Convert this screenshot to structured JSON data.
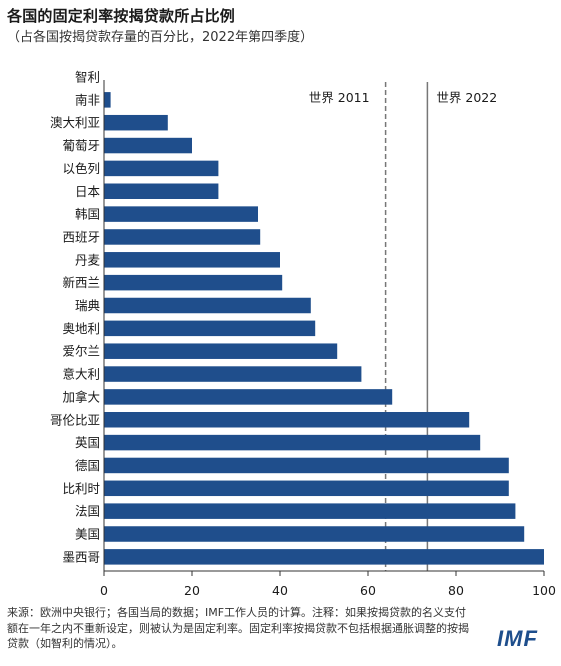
{
  "title": "各国的固定利率按揭贷款所占比例",
  "subtitle": "（占各国按揭贷款存量的百分比，2022年第四季度）",
  "footer": "来源：欧洲中央银行；各国当局的数据；IMF工作人员的计算。注释：如果按揭贷款的名义支付额在一年之内不重新设定，则被认为是固定利率。固定利率按揭贷款不包括根据通胀调整的按揭贷款（如智利的情况）。",
  "logo_text": "IMF",
  "colors": {
    "bar": "#1f4e8c",
    "refline": "#777777",
    "axis": "#333333"
  },
  "chart_data": {
    "type": "bar",
    "orientation": "horizontal",
    "categories": [
      "智利",
      "南非",
      "澳大利亚",
      "葡萄牙",
      "以色列",
      "日本",
      "韩国",
      "西班牙",
      "丹麦",
      "新西兰",
      "瑞典",
      "奥地利",
      "爱尔兰",
      "意大利",
      "加拿大",
      "哥伦比亚",
      "英国",
      "德国",
      "比利时",
      "法国",
      "美国",
      "墨西哥"
    ],
    "values": [
      0,
      1.5,
      14.5,
      20,
      26,
      26,
      35,
      35.5,
      40,
      40.5,
      47,
      48,
      53,
      58.5,
      65.5,
      83,
      85.5,
      92,
      92,
      93.5,
      95.5,
      100
    ],
    "xlim": [
      0,
      100
    ],
    "xticks": [
      "0",
      "20",
      "40",
      "60",
      "80",
      "100"
    ],
    "reference_lines": [
      {
        "label": "世界 2011",
        "value": 64,
        "style": "dashed"
      },
      {
        "label": "世界 2022",
        "value": 73.5,
        "style": "solid"
      }
    ]
  }
}
